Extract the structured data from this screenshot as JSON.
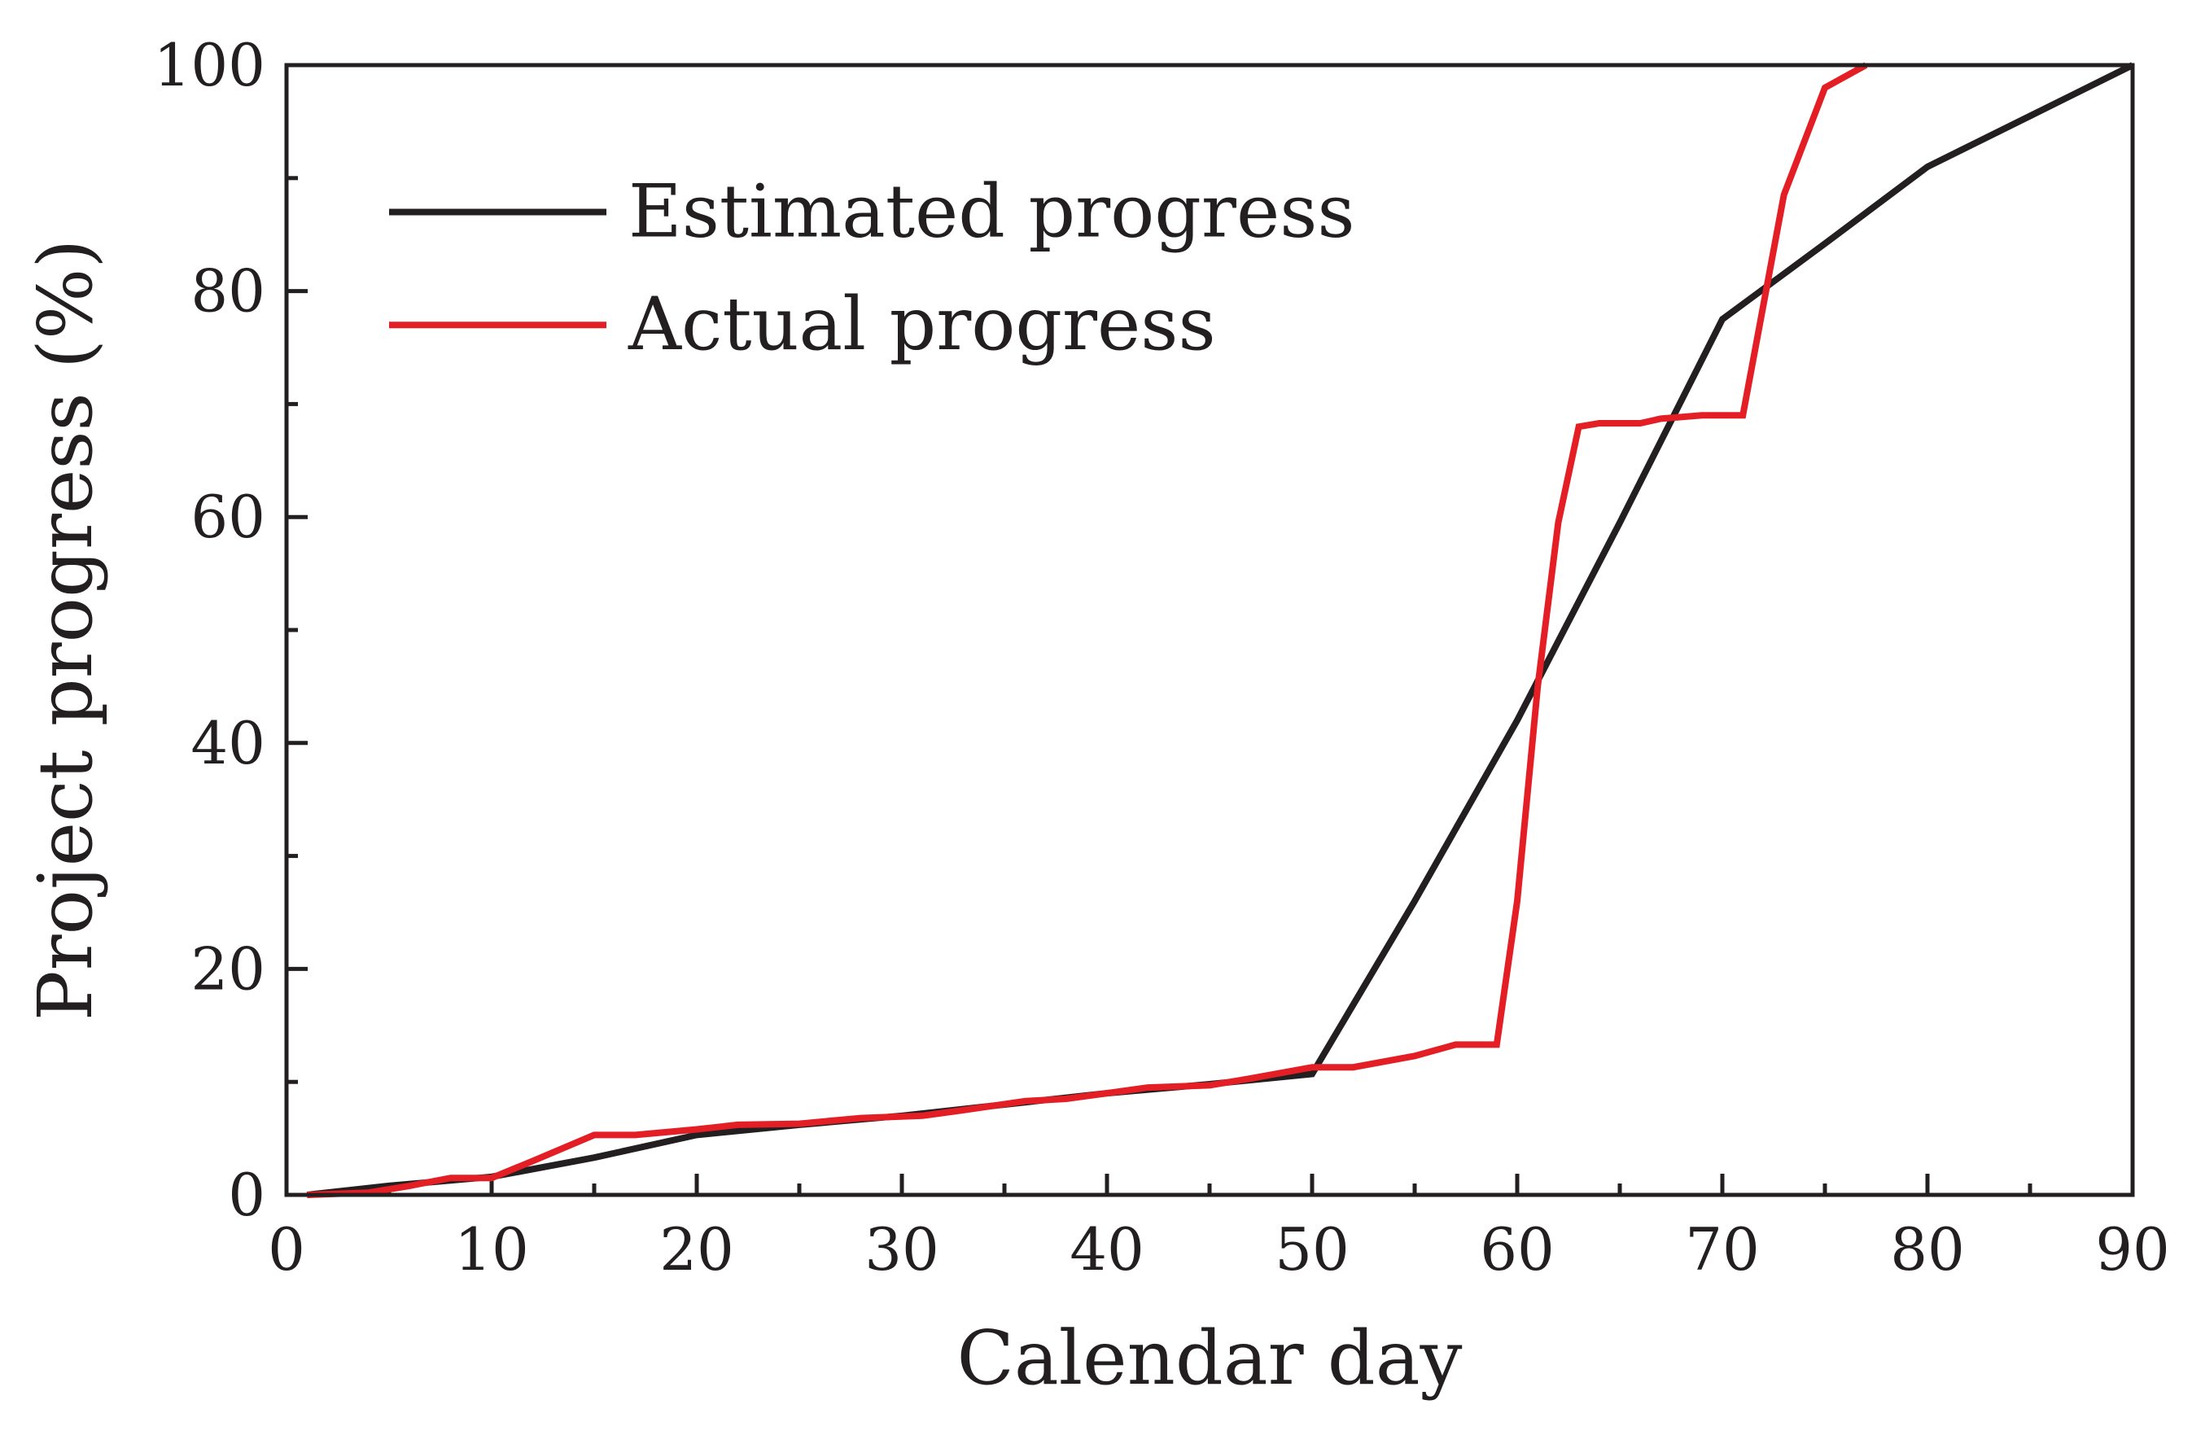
{
  "chart_data": {
    "type": "line",
    "title": "",
    "xlabel": "Calendar day",
    "ylabel": "Project progress (%)",
    "xlim": [
      0,
      90
    ],
    "ylim": [
      0,
      100
    ],
    "xticks": [
      0,
      10,
      20,
      30,
      40,
      50,
      60,
      70,
      80,
      90
    ],
    "yticks": [
      0,
      20,
      40,
      60,
      80,
      100
    ],
    "grid": false,
    "legend_position": "top-left",
    "series": [
      {
        "name": "Estimated progress",
        "color": "#231f20",
        "x": [
          1,
          5,
          10,
          15,
          20,
          25,
          30,
          35,
          40,
          45,
          50,
          55,
          60,
          65,
          70,
          75,
          80,
          85,
          90
        ],
        "y": [
          0,
          0.8,
          1.6,
          3.3,
          5.3,
          6.2,
          7.0,
          8.0,
          9.0,
          9.8,
          10.7,
          26.0,
          42.0,
          59.5,
          77.5,
          84.2,
          91.0,
          95.5,
          100
        ]
      },
      {
        "name": "Actual progress",
        "color": "#e31e24",
        "x": [
          1,
          4,
          6,
          8,
          10,
          12,
          15,
          17,
          20,
          22,
          25,
          28,
          31,
          33,
          36,
          38,
          40,
          42,
          45,
          47,
          50,
          52,
          55,
          57,
          59,
          60,
          61,
          62,
          63,
          64,
          66,
          67,
          69,
          71,
          73,
          75,
          77
        ],
        "y": [
          0,
          0.2,
          0.8,
          1.5,
          1.5,
          3.0,
          5.3,
          5.3,
          5.8,
          6.2,
          6.3,
          6.8,
          7.0,
          7.5,
          8.3,
          8.5,
          9.0,
          9.5,
          9.7,
          10.3,
          11.3,
          11.3,
          12.3,
          13.3,
          13.3,
          26.0,
          45.0,
          59.5,
          68.0,
          68.3,
          68.3,
          68.7,
          69.0,
          69.0,
          88.5,
          98.0,
          100
        ]
      }
    ]
  }
}
